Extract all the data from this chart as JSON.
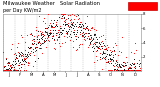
{
  "title": "Milwaukee Weather   Solar Radiation",
  "subtitle": "per Day KW/m2",
  "background_color": "#ffffff",
  "plot_bg_color": "#ffffff",
  "grid_color": "#aaaaaa",
  "dot_color_red": "#ff0000",
  "dot_color_black": "#111111",
  "legend_box_color": "#ff0000",
  "ylim": [
    0,
    8
  ],
  "ytick_vals": [
    2,
    4,
    6,
    8
  ],
  "dot_size_red": 2.5,
  "dot_size_black": 2.0,
  "title_fontsize": 3.8,
  "tick_fontsize": 2.8,
  "month_starts": [
    0,
    31,
    59,
    90,
    120,
    151,
    181,
    212,
    243,
    273,
    304,
    334
  ],
  "month_mids": [
    15,
    45,
    75,
    105,
    135,
    165,
    195,
    225,
    255,
    285,
    315,
    349
  ],
  "month_labels": [
    "J",
    "F",
    "M",
    "A",
    "M",
    "J",
    "J",
    "A",
    "S",
    "O",
    "N",
    "D"
  ]
}
